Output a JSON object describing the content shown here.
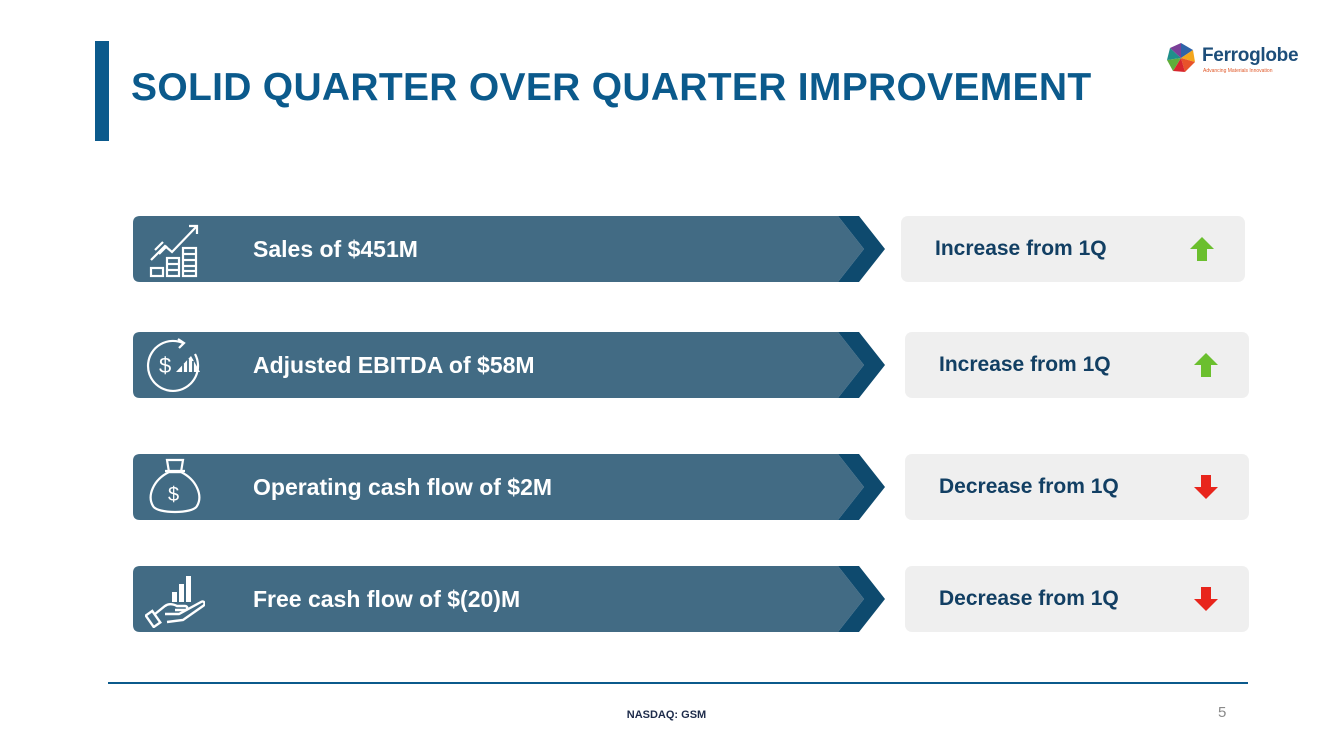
{
  "slide": {
    "title": "SOLID QUARTER OVER QUARTER IMPROVEMENT",
    "logo": {
      "name": "Ferroglobe",
      "tagline": "Advancing Materials Innovation"
    },
    "footer": {
      "ticker": "NASDAQ: GSM",
      "page_number": "5"
    }
  },
  "colors": {
    "primary": "#0b5a8c",
    "bar": "#426b84",
    "chevron": "#0e4a6e",
    "status_bg": "#efefef",
    "status_text": "#123f63",
    "up": "#6bbf2e",
    "down": "#e8251c"
  },
  "metrics": [
    {
      "label": "Sales of $451M",
      "icon": "growth-chart-icon",
      "status": "Increase from 1Q",
      "direction": "up"
    },
    {
      "label": "Adjusted EBITDA of $58M",
      "icon": "dollar-cycle-icon",
      "status": "Increase from 1Q",
      "direction": "up"
    },
    {
      "label": "Operating cash flow of $2M",
      "icon": "money-bag-icon",
      "status": "Decrease from 1Q",
      "direction": "down"
    },
    {
      "label": "Free cash flow of $(20)M",
      "icon": "hand-chart-icon",
      "status": "Decrease from 1Q",
      "direction": "down"
    }
  ]
}
